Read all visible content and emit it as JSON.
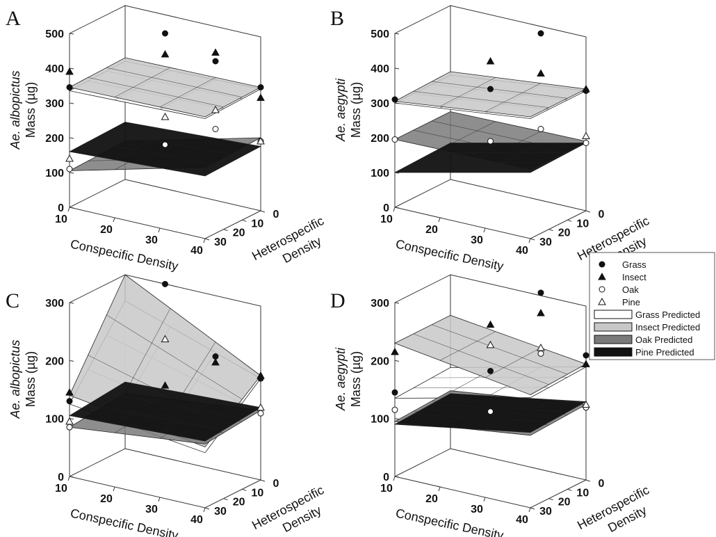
{
  "panels": [
    "A",
    "B",
    "C",
    "D"
  ],
  "legend": {
    "items": [
      {
        "label": "Grass",
        "marker": "circle",
        "fill": "#111111"
      },
      {
        "label": "Insect",
        "marker": "triangle",
        "fill": "#111111"
      },
      {
        "label": "Oak",
        "marker": "circle",
        "fill": "#ffffff"
      },
      {
        "label": "Pine",
        "marker": "triangle",
        "fill": "#ffffff"
      },
      {
        "label": "Grass Predicted",
        "marker": "box",
        "fill": "#ffffff"
      },
      {
        "label": "Insect Predicted",
        "marker": "box",
        "fill": "#c8c8c8"
      },
      {
        "label": "Oak Predicted",
        "marker": "box",
        "fill": "#7a7a7a"
      },
      {
        "label": "Pine Predicted",
        "marker": "box",
        "fill": "#111111"
      }
    ]
  },
  "chart_data": [
    {
      "panel": "A",
      "type": "surface3d",
      "species": "Ae. albopictus",
      "ylabel_rest": "Mass (µg)",
      "xlabel": "Conspecific Density",
      "zlabel": [
        "Heterospecific",
        "Density"
      ],
      "x_ticks": [
        10,
        20,
        30,
        40
      ],
      "z_ticks": [
        0,
        10,
        20,
        30
      ],
      "ylim": [
        0,
        500
      ],
      "y_ticks": [
        0,
        100,
        200,
        300,
        400,
        500
      ],
      "surfaces": [
        {
          "name": "Grass",
          "fill": "#ffffff",
          "opacity": 0.9,
          "corners": {
            "x10z0": 340,
            "x40z0": 350,
            "x10z30": 335,
            "x40z30": 345
          }
        },
        {
          "name": "Insect",
          "fill": "#c8c8c8",
          "opacity": 0.85,
          "corners": {
            "x10z0": 350,
            "x40z0": 355,
            "x10z30": 345,
            "x40z30": 350
          }
        },
        {
          "name": "Oak",
          "fill": "#7a7a7a",
          "opacity": 0.85,
          "corners": {
            "x10z0": 110,
            "x40z0": 210,
            "x10z30": 105,
            "x40z30": 205
          }
        },
        {
          "name": "Pine",
          "fill": "#111111",
          "opacity": 0.95,
          "corners": {
            "x10z0": 165,
            "x40z0": 185,
            "x10z30": 160,
            "x40z30": 180
          }
        }
      ],
      "points": [
        {
          "name": "Grass",
          "data": [
            [
              10,
              30,
              345
            ],
            [
              25,
              15,
              505
            ],
            [
              40,
              0,
              355
            ],
            [
              30,
              0,
              400
            ]
          ]
        },
        {
          "name": "Insect",
          "data": [
            [
              10,
              30,
              390
            ],
            [
              25,
              15,
              445
            ],
            [
              40,
              0,
              325
            ],
            [
              30,
              0,
              425
            ]
          ]
        },
        {
          "name": "Oak",
          "data": [
            [
              10,
              30,
              110
            ],
            [
              25,
              15,
              185
            ],
            [
              40,
              0,
              200
            ],
            [
              30,
              0,
              205
            ]
          ]
        },
        {
          "name": "Pine",
          "data": [
            [
              10,
              30,
              140
            ],
            [
              25,
              15,
              265
            ],
            [
              40,
              0,
              200
            ],
            [
              30,
              0,
              260
            ]
          ]
        }
      ]
    },
    {
      "panel": "B",
      "type": "surface3d",
      "species": "Ae. aegypti",
      "ylabel_rest": "Mass (µg)",
      "xlabel": "Conspecific Density",
      "zlabel": [
        "Heterospecific",
        "Density"
      ],
      "x_ticks": [
        10,
        20,
        30,
        40
      ],
      "z_ticks": [
        0,
        10,
        20,
        30
      ],
      "ylim": [
        0,
        500
      ],
      "y_ticks": [
        0,
        100,
        200,
        300,
        400,
        500
      ],
      "surfaces": [
        {
          "name": "Grass",
          "fill": "#ffffff",
          "opacity": 0.9,
          "corners": {
            "x10z0": 300,
            "x40z0": 345,
            "x10z30": 300,
            "x40z30": 345
          }
        },
        {
          "name": "Insect",
          "fill": "#c8c8c8",
          "opacity": 0.85,
          "corners": {
            "x10z0": 310,
            "x40z0": 350,
            "x10z30": 305,
            "x40z30": 350
          }
        },
        {
          "name": "Oak",
          "fill": "#7a7a7a",
          "opacity": 0.85,
          "corners": {
            "x10z0": 195,
            "x40z0": 200,
            "x10z30": 195,
            "x40z30": 200
          }
        },
        {
          "name": "Pine",
          "fill": "#111111",
          "opacity": 0.95,
          "corners": {
            "x10z0": 105,
            "x40z0": 195,
            "x10z30": 100,
            "x40z30": 190
          }
        }
      ],
      "points": [
        {
          "name": "Grass",
          "data": [
            [
              10,
              30,
              310
            ],
            [
              25,
              15,
              345
            ],
            [
              40,
              0,
              345
            ],
            [
              30,
              0,
              480
            ]
          ]
        },
        {
          "name": "Insect",
          "data": [
            [
              25,
              15,
              425
            ],
            [
              40,
              0,
              350
            ],
            [
              30,
              0,
              365
            ]
          ]
        },
        {
          "name": "Oak",
          "data": [
            [
              10,
              30,
              195
            ],
            [
              25,
              15,
              195
            ],
            [
              40,
              0,
              195
            ],
            [
              30,
              0,
              205
            ]
          ]
        },
        {
          "name": "Pine",
          "data": [
            [
              40,
              0,
              215
            ]
          ]
        }
      ]
    },
    {
      "panel": "C",
      "type": "surface3d",
      "species": "Ae. albopictus",
      "ylabel_rest": "Mass (µg)",
      "xlabel": "Conspecific Density",
      "zlabel": [
        "Heterospecific",
        "Density"
      ],
      "x_ticks": [
        10,
        20,
        30,
        40
      ],
      "z_ticks": [
        0,
        10,
        20,
        30
      ],
      "ylim": [
        0,
        300
      ],
      "y_ticks": [
        0,
        100,
        200,
        300
      ],
      "surfaces": [
        {
          "name": "Grass",
          "fill": "#ffffff",
          "opacity": 0.9,
          "corners": {
            "x10z0": 255,
            "x40z0": 175,
            "x10z30": 125,
            "x40z30": 95
          }
        },
        {
          "name": "Insect",
          "fill": "#c8c8c8",
          "opacity": 0.85,
          "corners": {
            "x10z0": 300,
            "x40z0": 180,
            "x10z30": 140,
            "x40z30": 105
          }
        },
        {
          "name": "Oak",
          "fill": "#7a7a7a",
          "opacity": 0.85,
          "corners": {
            "x10z0": 95,
            "x40z0": 120,
            "x10z30": 85,
            "x40z30": 110
          }
        },
        {
          "name": "Pine",
          "fill": "#111111",
          "opacity": 0.95,
          "corners": {
            "x10z0": 115,
            "x40z0": 125,
            "x10z30": 105,
            "x40z30": 115
          }
        }
      ],
      "points": [
        {
          "name": "Grass",
          "data": [
            [
              10,
              30,
              130
            ],
            [
              25,
              15,
              335
            ],
            [
              40,
              0,
              175
            ],
            [
              30,
              0,
              195
            ]
          ]
        },
        {
          "name": "Insect",
          "data": [
            [
              10,
              30,
              145
            ],
            [
              25,
              15,
              160
            ],
            [
              40,
              0,
              180
            ],
            [
              30,
              0,
              185
            ]
          ]
        },
        {
          "name": "Oak",
          "data": [
            [
              10,
              30,
              85
            ],
            [
              40,
              0,
              115
            ]
          ]
        },
        {
          "name": "Pine",
          "data": [
            [
              10,
              30,
              95
            ],
            [
              25,
              15,
              240
            ],
            [
              40,
              0,
              125
            ]
          ]
        }
      ]
    },
    {
      "panel": "D",
      "type": "surface3d",
      "species": "Ae. aegypti",
      "ylabel_rest": "Mass (µg)",
      "xlabel": "Conspecific Density",
      "zlabel": [
        "Heterospecific",
        "Density"
      ],
      "x_ticks": [
        10,
        20,
        30,
        40
      ],
      "z_ticks": [
        0,
        10,
        20,
        30
      ],
      "ylim": [
        0,
        300
      ],
      "y_ticks": [
        0,
        100,
        200,
        300
      ],
      "surfaces": [
        {
          "name": "Grass",
          "fill": "#ffffff",
          "opacity": 0.9,
          "corners": {
            "x10z0": 140,
            "x40z0": 195,
            "x10z30": 135,
            "x40z30": 190
          }
        },
        {
          "name": "Insect",
          "fill": "#c8c8c8",
          "opacity": 0.85,
          "corners": {
            "x10z0": 230,
            "x40z0": 200,
            "x10z30": 230,
            "x40z30": 195
          }
        },
        {
          "name": "Oak",
          "fill": "#7a7a7a",
          "opacity": 0.85,
          "corners": {
            "x10z0": 100,
            "x40z0": 130,
            "x10z30": 95,
            "x40z30": 125
          }
        },
        {
          "name": "Pine",
          "fill": "#111111",
          "opacity": 0.95,
          "corners": {
            "x10z0": 95,
            "x40z0": 135,
            "x10z30": 90,
            "x40z30": 130
          }
        }
      ],
      "points": [
        {
          "name": "Grass",
          "data": [
            [
              10,
              30,
              145
            ],
            [
              25,
              15,
              185
            ],
            [
              40,
              0,
              215
            ],
            [
              30,
              0,
              305
            ]
          ]
        },
        {
          "name": "Insect",
          "data": [
            [
              10,
              30,
              215
            ],
            [
              25,
              15,
              265
            ],
            [
              40,
              0,
              200
            ],
            [
              30,
              0,
              270
            ]
          ]
        },
        {
          "name": "Oak",
          "data": [
            [
              10,
              30,
              115
            ],
            [
              25,
              15,
              115
            ],
            [
              40,
              0,
              125
            ],
            [
              30,
              0,
              200
            ]
          ]
        },
        {
          "name": "Pine",
          "data": [
            [
              25,
              15,
              230
            ],
            [
              40,
              0,
              130
            ],
            [
              30,
              0,
              210
            ]
          ]
        }
      ]
    }
  ]
}
